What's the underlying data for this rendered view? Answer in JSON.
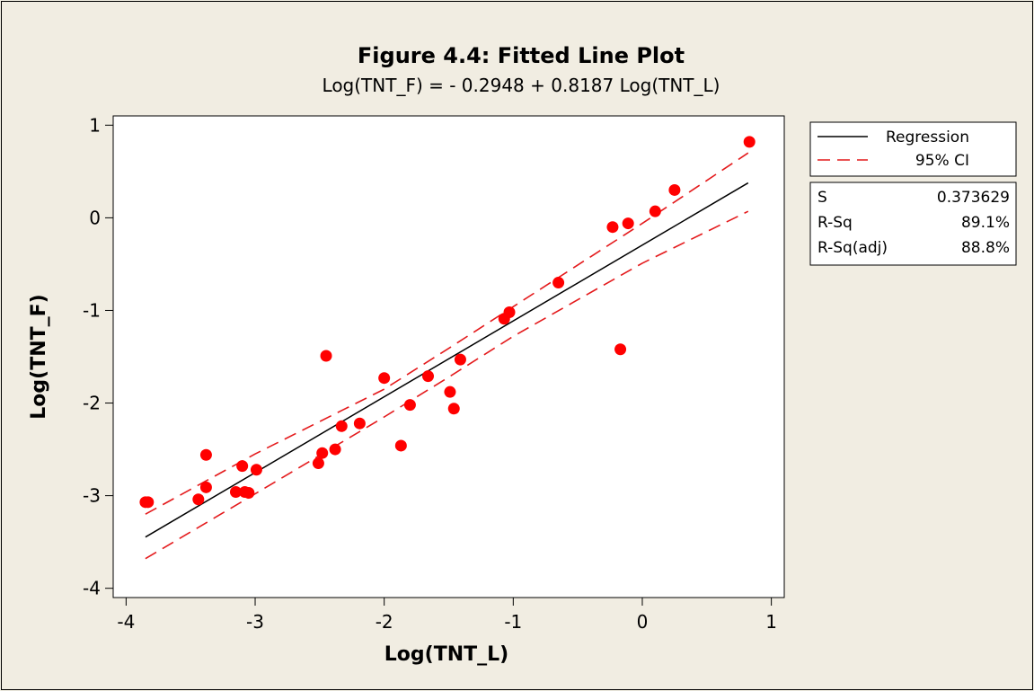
{
  "chart_data": {
    "type": "scatter",
    "title": "Figure 4.4: Fitted Line Plot",
    "subtitle": "Log(TNT_F) =  - 0.2948 + 0.8187 Log(TNT_L)",
    "xlabel": "Log(TNT_L)",
    "ylabel": "Log(TNT_F)",
    "xlim": [
      -4.1,
      1.1
    ],
    "ylim": [
      -4.1,
      1.1
    ],
    "xticks": [
      "-4",
      "-3",
      "-2",
      "-1",
      "0",
      "1"
    ],
    "yticks": [
      "-4",
      "-3",
      "-2",
      "-1",
      "0",
      "1"
    ],
    "xtick_values": [
      -4,
      -3,
      -2,
      -1,
      0,
      1
    ],
    "ytick_values": [
      -4,
      -3,
      -2,
      -1,
      0,
      1
    ],
    "regression": {
      "intercept": -0.2948,
      "slope": 0.8187,
      "x_range": [
        -3.85,
        0.82
      ]
    },
    "ci": {
      "upper": [
        [
          -3.85,
          -3.2
        ],
        [
          -3.0,
          -2.55
        ],
        [
          -2.0,
          -1.85
        ],
        [
          -1.5,
          -1.41
        ],
        [
          -1.0,
          -0.96
        ],
        [
          0.0,
          -0.06
        ],
        [
          0.82,
          0.7
        ]
      ],
      "lower": [
        [
          -3.85,
          -3.68
        ],
        [
          -3.0,
          -2.98
        ],
        [
          -2.0,
          -2.15
        ],
        [
          -1.5,
          -1.72
        ],
        [
          -1.0,
          -1.28
        ],
        [
          0.0,
          -0.49
        ],
        [
          0.82,
          0.07
        ]
      ]
    },
    "points": [
      [
        -3.85,
        -3.07
      ],
      [
        -3.83,
        -3.07
      ],
      [
        -3.44,
        -3.04
      ],
      [
        -3.38,
        -2.91
      ],
      [
        -3.38,
        -2.56
      ],
      [
        -3.15,
        -2.96
      ],
      [
        -3.1,
        -2.68
      ],
      [
        -3.08,
        -2.96
      ],
      [
        -3.05,
        -2.97
      ],
      [
        -2.99,
        -2.72
      ],
      [
        -2.51,
        -2.65
      ],
      [
        -2.48,
        -2.54
      ],
      [
        -2.45,
        -1.49
      ],
      [
        -2.38,
        -2.5
      ],
      [
        -2.33,
        -2.25
      ],
      [
        -2.19,
        -2.22
      ],
      [
        -2.0,
        -1.73
      ],
      [
        -1.87,
        -2.46
      ],
      [
        -1.8,
        -2.02
      ],
      [
        -1.66,
        -1.71
      ],
      [
        -1.49,
        -1.88
      ],
      [
        -1.46,
        -2.06
      ],
      [
        -1.41,
        -1.53
      ],
      [
        -1.07,
        -1.09
      ],
      [
        -1.03,
        -1.02
      ],
      [
        -0.65,
        -0.7
      ],
      [
        -0.23,
        -0.1
      ],
      [
        -0.17,
        -1.42
      ],
      [
        -0.11,
        -0.06
      ],
      [
        0.1,
        0.07
      ],
      [
        0.25,
        0.3
      ],
      [
        0.83,
        0.82
      ]
    ],
    "legend": {
      "position": "right",
      "entries": [
        {
          "label": "Regression",
          "color": "#000000",
          "style": "solid"
        },
        {
          "label": "95% CI",
          "color": "#e41a1c",
          "style": "dashed"
        }
      ]
    },
    "stats": [
      {
        "label": "S",
        "value": "0.373629"
      },
      {
        "label": "R-Sq",
        "value": "89.1%"
      },
      {
        "label": "R-Sq(adj)",
        "value": "88.8%"
      }
    ],
    "colors": {
      "background": "#f1ede2",
      "plot_area": "#ffffff",
      "points": "#ff0000",
      "regression": "#000000",
      "ci": "#e41a1c"
    }
  }
}
